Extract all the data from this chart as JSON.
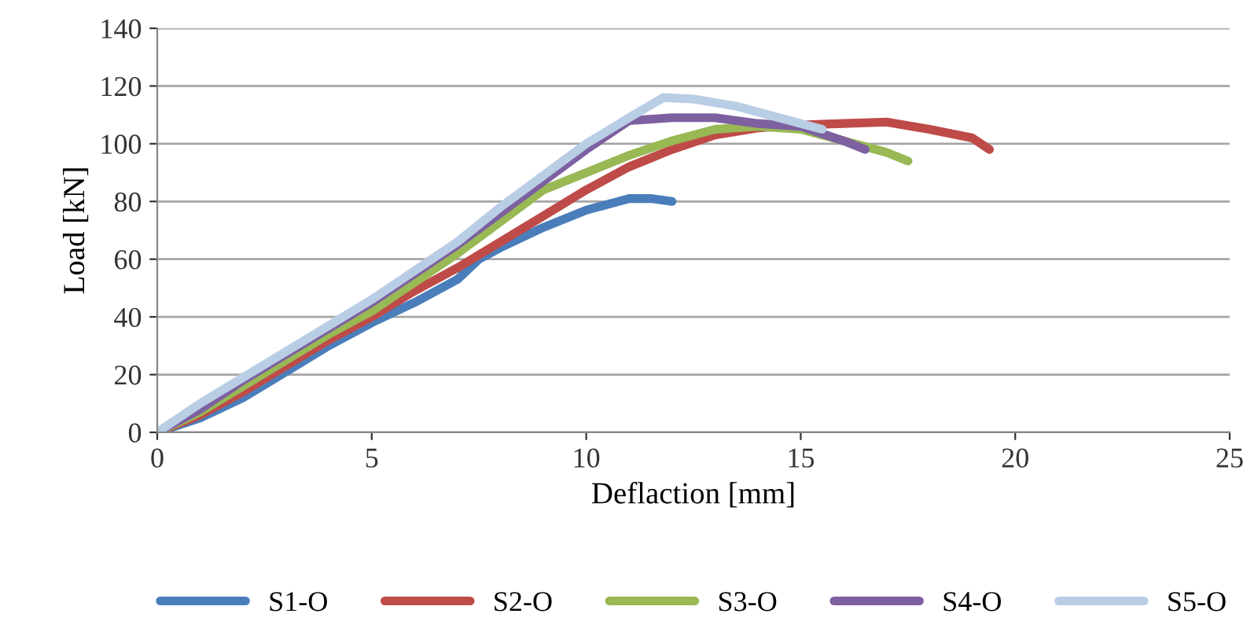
{
  "chart_data": {
    "type": "line",
    "xlabel": "Deflaction [mm]",
    "ylabel": "Load [kN]",
    "xlim": [
      0,
      25
    ],
    "xticks": [
      0,
      5,
      10,
      15,
      20,
      25
    ],
    "ylim": [
      0,
      140
    ],
    "yticks": [
      0,
      20,
      40,
      60,
      80,
      100,
      120,
      140
    ],
    "grid": "y",
    "legend": "bottom",
    "marker": "none",
    "line_style": "solid",
    "series": [
      {
        "name": "S1-O",
        "color": "#4a7ebb",
        "x": [
          0,
          1,
          2,
          3,
          4,
          5,
          6,
          7,
          7.5,
          8,
          9,
          10,
          11,
          11.5,
          12
        ],
        "values": [
          0,
          5,
          12,
          21,
          30,
          38,
          45,
          53,
          60,
          64,
          71,
          77,
          81,
          81,
          80
        ]
      },
      {
        "name": "S2-O",
        "color": "#be4b48",
        "x": [
          0,
          1,
          2,
          3,
          4,
          5,
          6,
          7,
          8,
          9,
          10,
          11,
          12,
          13,
          14,
          15,
          16,
          17,
          18,
          19,
          19.4
        ],
        "values": [
          0,
          6,
          14,
          23,
          32,
          40,
          49,
          57,
          66,
          75,
          84,
          92,
          98,
          103,
          105.5,
          106.5,
          107,
          107.5,
          105,
          102,
          98
        ]
      },
      {
        "name": "S3-O",
        "color": "#98b954",
        "x": [
          0,
          1,
          2,
          3,
          4,
          5,
          6,
          7,
          8,
          9,
          10,
          11,
          12,
          13,
          14,
          15,
          16,
          17,
          17.5
        ],
        "values": [
          0,
          7,
          16,
          25,
          34,
          42,
          52,
          62,
          73,
          84,
          90,
          96,
          101,
          105,
          106,
          105,
          101,
          97,
          94
        ]
      },
      {
        "name": "S4-O",
        "color": "#7d60a0",
        "x": [
          0,
          1,
          2,
          3,
          4,
          5,
          6,
          7,
          8,
          9,
          10,
          11,
          12,
          13,
          14,
          15,
          16,
          16.5
        ],
        "values": [
          0,
          8,
          18,
          27,
          36,
          45,
          55,
          65,
          76,
          87,
          98,
          108,
          109,
          109,
          107,
          106,
          101,
          98
        ]
      },
      {
        "name": "S5-O",
        "color": "#b9cde5",
        "x": [
          0,
          1,
          2,
          3,
          4,
          5,
          6,
          7,
          8,
          9,
          10,
          11,
          11.8,
          12.5,
          13.5,
          14.5,
          15.5
        ],
        "values": [
          0,
          10,
          19,
          28,
          37,
          46,
          56,
          66,
          78,
          89,
          100,
          109,
          116,
          115.5,
          113,
          109,
          105
        ]
      }
    ]
  }
}
